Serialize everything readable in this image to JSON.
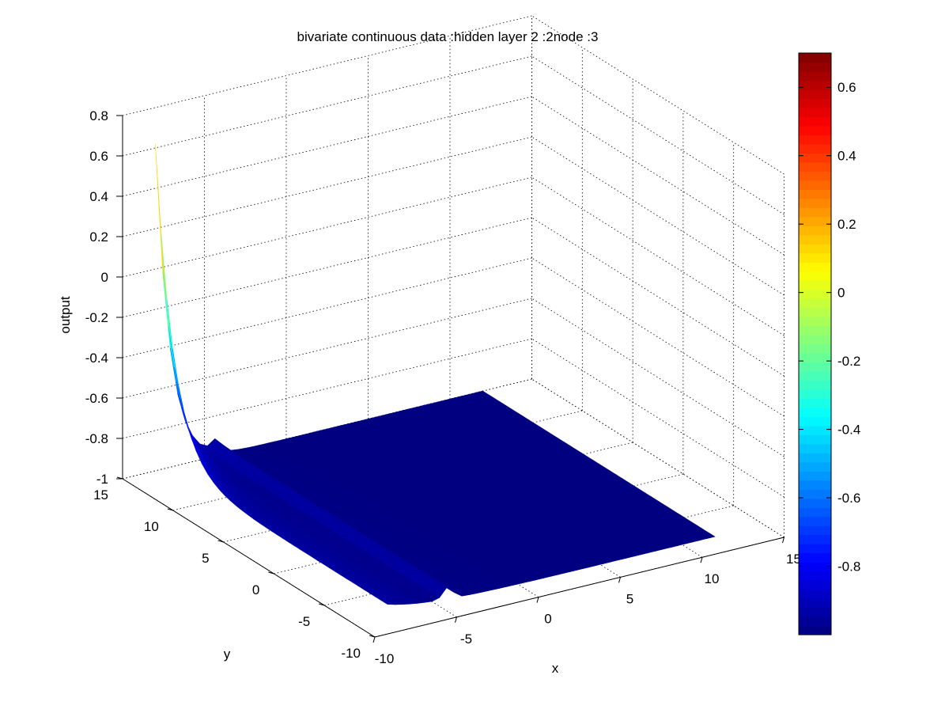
{
  "chart_data": {
    "type": "surface3d",
    "title": "bivariate continuous data :hidden layer 2 :2node :3",
    "xlabel": "x",
    "ylabel": "y",
    "zlabel": "output",
    "xlim": [
      -10,
      15
    ],
    "ylim": [
      -10,
      15
    ],
    "zlim": [
      -1,
      0.8
    ],
    "x_ticks": [
      "-10",
      "-5",
      "0",
      "5",
      "10",
      "15"
    ],
    "y_ticks": [
      "-10",
      "-5",
      "0",
      "5",
      "10",
      "15"
    ],
    "z_ticks": [
      "-1",
      "-0.8",
      "-0.6",
      "-0.4",
      "-0.2",
      "0",
      "0.2",
      "0.4",
      "0.6",
      "0.8"
    ],
    "x_domain": [
      -8,
      12
    ],
    "y_domain": [
      -8,
      15
    ],
    "grid": true,
    "colormap": "jet",
    "colorbar": {
      "range": [
        -1,
        0.7
      ],
      "ticks": [
        "0.6",
        "0.4",
        "0.2",
        "0",
        "-0.2",
        "-0.4",
        "-0.6",
        "-0.8"
      ],
      "tick_values": [
        0.6,
        0.4,
        0.2,
        0,
        -0.2,
        -0.4,
        -0.6,
        -0.8
      ]
    },
    "surface_model": {
      "baseline": -1.0,
      "wall_amplitude": 1.62,
      "wall_decay": 1.8,
      "ridge_center_x": -4.3,
      "ridge_amplitude": 0.06,
      "ridge_width": 0.3,
      "peak_value": 0.62
    }
  }
}
